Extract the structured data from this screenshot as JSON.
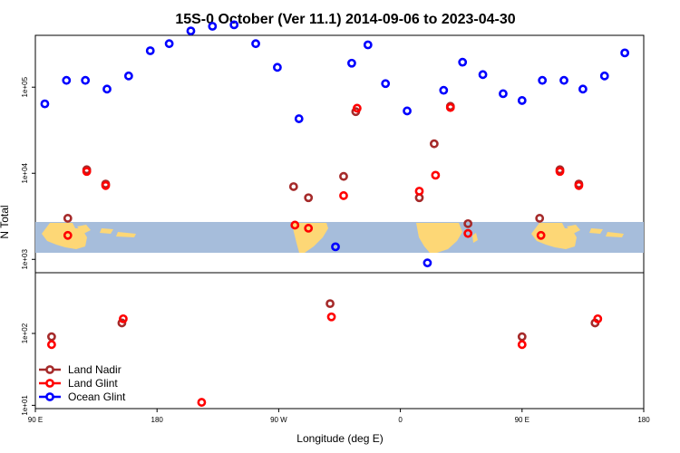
{
  "chart_data": {
    "type": "scatter",
    "title": "15S-0 October (Ver 11.1)   2014-09-06 to 2023-04-30",
    "xlabel": "Longitude (deg E)",
    "ylabel": "N Total",
    "y_scale": "log",
    "xlim": [
      90,
      540
    ],
    "x_tick_values": [
      90,
      180,
      270,
      360,
      450,
      540
    ],
    "x_tick_labels": [
      "90 E",
      "180",
      "90 W",
      "0",
      "90 E",
      "180"
    ],
    "y_tick_values": [
      10,
      100,
      1000,
      10000,
      100000
    ],
    "y_tick_labels": [
      "1e+01",
      "1e+02",
      "1e+03",
      "1e+04",
      "1e+05"
    ],
    "upper_panel_ylim": [
      700,
      400000
    ],
    "lower_panel_ylim": [
      9,
      700
    ],
    "legend_position": "bottom-left",
    "series": [
      {
        "name": "Land Nadir",
        "color": "#a52a2a",
        "points": [
          {
            "x": 102,
            "y": 90
          },
          {
            "x": 114,
            "y": 3000
          },
          {
            "x": 128,
            "y": 11000
          },
          {
            "x": 142,
            "y": 7500
          },
          {
            "x": 154,
            "y": 140
          },
          {
            "x": 281,
            "y": 7000
          },
          {
            "x": 292,
            "y": 5200
          },
          {
            "x": 308,
            "y": 260
          },
          {
            "x": 318,
            "y": 9200
          },
          {
            "x": 327,
            "y": 52000
          },
          {
            "x": 374,
            "y": 5200
          },
          {
            "x": 385,
            "y": 22000
          },
          {
            "x": 397,
            "y": 60000
          },
          {
            "x": 410,
            "y": 2600
          },
          {
            "x": 450,
            "y": 90
          },
          {
            "x": 463,
            "y": 3000
          },
          {
            "x": 478,
            "y": 11000
          },
          {
            "x": 492,
            "y": 7500
          },
          {
            "x": 504,
            "y": 140
          }
        ]
      },
      {
        "name": "Land Glint",
        "color": "#ff0000",
        "points": [
          {
            "x": 102,
            "y": 70
          },
          {
            "x": 114,
            "y": 1900
          },
          {
            "x": 128,
            "y": 10500
          },
          {
            "x": 142,
            "y": 7200
          },
          {
            "x": 155,
            "y": 160
          },
          {
            "x": 213,
            "y": 11
          },
          {
            "x": 282,
            "y": 2500
          },
          {
            "x": 292,
            "y": 2300
          },
          {
            "x": 309,
            "y": 170
          },
          {
            "x": 318,
            "y": 5500
          },
          {
            "x": 328,
            "y": 57000
          },
          {
            "x": 374,
            "y": 6200
          },
          {
            "x": 386,
            "y": 9500
          },
          {
            "x": 397,
            "y": 58000
          },
          {
            "x": 410,
            "y": 2000
          },
          {
            "x": 450,
            "y": 70
          },
          {
            "x": 464,
            "y": 1900
          },
          {
            "x": 478,
            "y": 10500
          },
          {
            "x": 492,
            "y": 7200
          },
          {
            "x": 506,
            "y": 160
          }
        ]
      },
      {
        "name": "Ocean Glint",
        "color": "#0000ff",
        "points": [
          {
            "x": 97,
            "y": 64000
          },
          {
            "x": 113,
            "y": 120000
          },
          {
            "x": 127,
            "y": 120000
          },
          {
            "x": 143,
            "y": 95000
          },
          {
            "x": 159,
            "y": 135000
          },
          {
            "x": 175,
            "y": 265000
          },
          {
            "x": 189,
            "y": 320000
          },
          {
            "x": 205,
            "y": 450000
          },
          {
            "x": 221,
            "y": 510000
          },
          {
            "x": 237,
            "y": 530000
          },
          {
            "x": 253,
            "y": 320000
          },
          {
            "x": 269,
            "y": 170000
          },
          {
            "x": 285,
            "y": 43000
          },
          {
            "x": 312,
            "y": 1400
          },
          {
            "x": 324,
            "y": 190000
          },
          {
            "x": 336,
            "y": 310000
          },
          {
            "x": 349,
            "y": 110000
          },
          {
            "x": 365,
            "y": 53000
          },
          {
            "x": 380,
            "y": 910
          },
          {
            "x": 392,
            "y": 92000
          },
          {
            "x": 406,
            "y": 195000
          },
          {
            "x": 421,
            "y": 140000
          },
          {
            "x": 436,
            "y": 84000
          },
          {
            "x": 450,
            "y": 70000
          },
          {
            "x": 465,
            "y": 120000
          },
          {
            "x": 481,
            "y": 120000
          },
          {
            "x": 495,
            "y": 95000
          },
          {
            "x": 511,
            "y": 135000
          },
          {
            "x": 526,
            "y": 250000
          }
        ]
      }
    ]
  }
}
